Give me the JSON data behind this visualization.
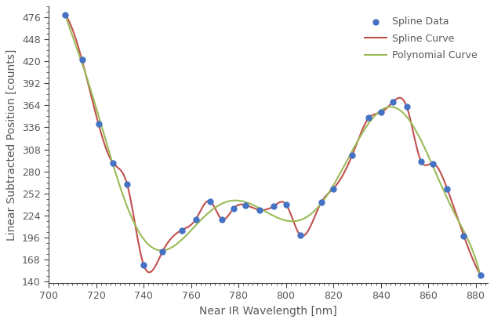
{
  "title": "",
  "xlabel": "Near IR Wavelength [nm]",
  "ylabel": "Linear Subtracted Position [counts]",
  "xlim": [
    700,
    885
  ],
  "ylim": [
    138,
    490
  ],
  "xticks": [
    700,
    720,
    740,
    760,
    780,
    800,
    820,
    840,
    860,
    880
  ],
  "yticks": [
    140,
    168,
    196,
    224,
    252,
    280,
    308,
    336,
    364,
    392,
    420,
    448,
    476
  ],
  "data_x": [
    707,
    714,
    721,
    727,
    733,
    740,
    748,
    756,
    762,
    768,
    773,
    778,
    783,
    789,
    795,
    800,
    806,
    815,
    820,
    828,
    835,
    840,
    845,
    851,
    857,
    862,
    868,
    875,
    882
  ],
  "data_y": [
    479,
    422,
    340,
    291,
    264,
    161,
    178,
    205,
    219,
    242,
    219,
    233,
    237,
    231,
    236,
    238,
    199,
    241,
    258,
    301,
    348,
    355,
    368,
    362,
    293,
    290,
    258,
    198,
    148
  ],
  "dot_color": "#4472C4",
  "spline_color": "#C0504D",
  "poly_color": "#9BBB59",
  "legend_labels": [
    "Spline Data",
    "Spline Curve",
    "Polynomial Curve"
  ],
  "dot_size": 25,
  "line_width": 1.5,
  "bg_color": "#FFFFFF",
  "font_color": "#595959",
  "axis_color": "#404040",
  "font_size_axis": 10,
  "font_size_tick": 9,
  "font_size_legend": 9,
  "poly_degree": 9
}
